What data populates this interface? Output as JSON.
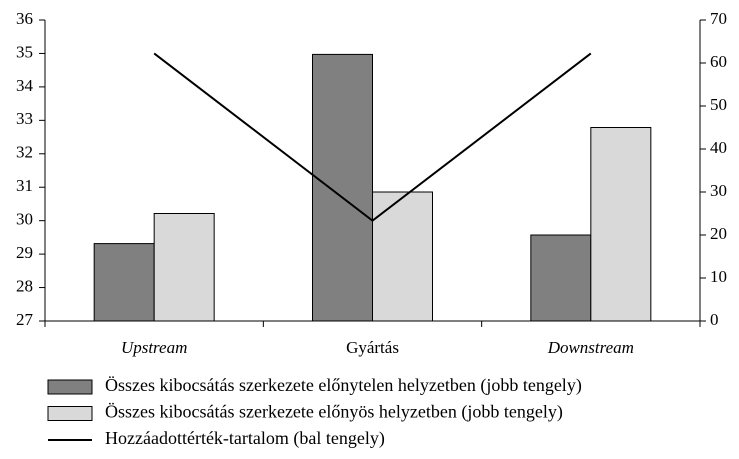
{
  "chart_data": {
    "type": "bar-line",
    "categories": [
      "Upstream",
      "Gyártás",
      "Downstream"
    ],
    "series": [
      {
        "name": "Összes kibocsátás szerkezete előnytelen helyzetben (jobb tengely)",
        "type": "bar",
        "axis": "y2",
        "color": "#808080",
        "values": [
          18,
          62,
          20
        ]
      },
      {
        "name": "Összes kibocsátás szerkezete előnyös helyzetben (jobb tengely)",
        "type": "bar",
        "axis": "y2",
        "color": "#d9d9d9",
        "values": [
          25,
          30,
          45
        ]
      },
      {
        "name": "Hozzáadottérték-tartalom (bal tengely)",
        "type": "line",
        "axis": "y",
        "color": "#000000",
        "values": [
          35,
          30,
          35
        ]
      }
    ],
    "ylim": [
      27,
      36
    ],
    "yticks": [
      27,
      28,
      29,
      30,
      31,
      32,
      33,
      34,
      35,
      36
    ],
    "y2lim": [
      0,
      70
    ],
    "y2ticks": [
      0,
      10,
      20,
      30,
      40,
      50,
      60,
      70
    ],
    "grid": false,
    "legend": "bottom"
  }
}
